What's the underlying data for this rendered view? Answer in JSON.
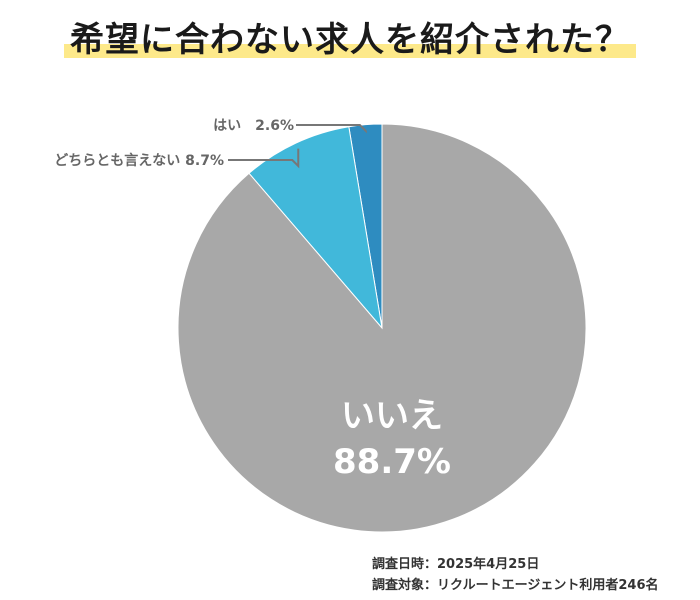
{
  "title": "希望に合わない求人を紹介された？",
  "chart_data": {
    "type": "pie",
    "slices": [
      {
        "label": "はい",
        "value": 2.6,
        "value_label": "2.6%",
        "color": "#2e8cc0"
      },
      {
        "label": "どちらとも言えない",
        "value": 8.7,
        "value_label": "8.7%",
        "color": "#41b8da"
      },
      {
        "label": "いいえ",
        "value": 88.7,
        "value_label": "88.7%",
        "color": "#a8a8a8"
      }
    ],
    "start_angle": "12 o'clock",
    "direction": "counter-clockwise"
  },
  "footnotes": {
    "survey_date": "調査日時：2025年4月25日",
    "survey_target": "調査対象：リクルートエージェント利用者246名"
  }
}
